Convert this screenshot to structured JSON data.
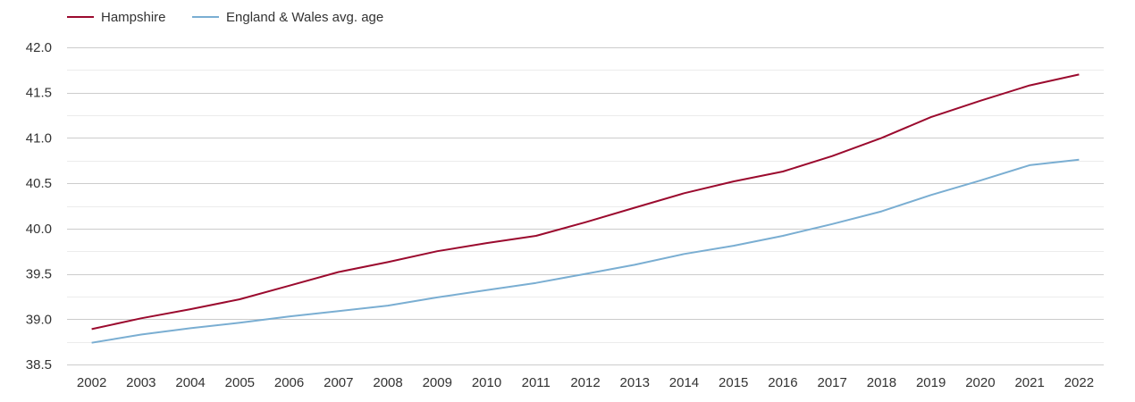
{
  "chart_data": {
    "type": "line",
    "title": "",
    "xlabel": "",
    "ylabel": "",
    "x": [
      "2002",
      "2003",
      "2004",
      "2005",
      "2006",
      "2007",
      "2008",
      "2009",
      "2010",
      "2011",
      "2012",
      "2013",
      "2014",
      "2015",
      "2016",
      "2017",
      "2018",
      "2019",
      "2020",
      "2021",
      "2022"
    ],
    "ylim": [
      38.5,
      42.0
    ],
    "yticks": [
      "42.0",
      "41.5",
      "41.0",
      "40.5",
      "40.0",
      "39.5",
      "39.0",
      "38.5"
    ],
    "grid": true,
    "legend_position": "top-left",
    "series": [
      {
        "name": "Hampshire",
        "color": "#9b0a2e",
        "values": [
          38.89,
          39.01,
          39.11,
          39.22,
          39.37,
          39.52,
          39.63,
          39.75,
          39.84,
          39.92,
          40.07,
          40.23,
          40.39,
          40.52,
          40.63,
          40.8,
          41.0,
          41.23,
          41.41,
          41.58,
          41.7
        ]
      },
      {
        "name": "England & Wales avg. age",
        "color": "#7aaed2",
        "values": [
          38.74,
          38.83,
          38.9,
          38.96,
          39.03,
          39.09,
          39.15,
          39.24,
          39.32,
          39.4,
          39.5,
          39.6,
          39.72,
          39.81,
          39.92,
          40.05,
          40.19,
          40.37,
          40.53,
          40.7,
          40.76
        ]
      }
    ]
  }
}
